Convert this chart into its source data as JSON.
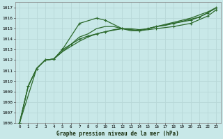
{
  "title": "Graphe pression niveau de la mer (hPa)",
  "bg_color": "#c8e8e8",
  "grid_color": "#b8d8d8",
  "line_color": "#2d6a2d",
  "xlim": [
    -0.5,
    23.5
  ],
  "ylim": [
    1006,
    1017.5
  ],
  "xticks": [
    0,
    1,
    2,
    3,
    4,
    5,
    6,
    7,
    8,
    9,
    10,
    11,
    12,
    13,
    14,
    15,
    16,
    17,
    18,
    19,
    20,
    21,
    22,
    23
  ],
  "yticks": [
    1006,
    1007,
    1008,
    1009,
    1010,
    1011,
    1012,
    1013,
    1014,
    1015,
    1016,
    1017
  ],
  "series": [
    {
      "x": [
        0,
        1,
        2,
        3,
        4,
        5,
        7,
        9,
        10,
        12,
        14,
        16,
        18,
        20,
        22,
        23
      ],
      "y": [
        1006,
        1009.5,
        1011.2,
        1012.0,
        1012.1,
        1013.0,
        1015.5,
        1016.0,
        1015.8,
        1015.0,
        1014.8,
        1015.0,
        1015.2,
        1015.5,
        1016.2,
        1016.8
      ]
    },
    {
      "x": [
        0,
        1,
        2,
        3,
        4,
        5,
        6,
        7,
        8,
        9,
        10,
        11,
        12,
        13,
        14,
        15,
        16,
        17,
        18,
        19,
        20,
        21,
        22,
        23
      ],
      "y": [
        1006,
        1009.5,
        1011.2,
        1012.0,
        1012.1,
        1012.8,
        1013.5,
        1014.2,
        1014.5,
        1015.0,
        1015.2,
        1015.2,
        1015.0,
        1014.8,
        1014.8,
        1015.0,
        1015.2,
        1015.3,
        1015.5,
        1015.7,
        1015.9,
        1016.1,
        1016.5,
        1017.0
      ]
    },
    {
      "x": [
        0,
        1,
        2,
        3,
        4,
        5,
        6,
        7,
        8,
        9,
        10,
        11,
        12,
        13,
        14,
        15,
        16,
        17,
        18,
        19,
        20,
        21,
        22,
        23
      ],
      "y": [
        1006,
        1009.5,
        1011.2,
        1012.0,
        1012.1,
        1012.8,
        1013.3,
        1013.8,
        1014.2,
        1014.5,
        1014.7,
        1014.9,
        1015.0,
        1015.0,
        1014.9,
        1015.0,
        1015.2,
        1015.4,
        1015.6,
        1015.8,
        1016.0,
        1016.3,
        1016.6,
        1017.0
      ]
    },
    {
      "x": [
        0,
        2,
        3,
        4,
        5,
        6,
        7,
        8,
        9,
        10,
        12,
        14,
        15,
        16,
        18,
        20,
        21,
        22,
        23
      ],
      "y": [
        1006,
        1011.2,
        1012.0,
        1012.1,
        1013.0,
        1013.5,
        1014.0,
        1014.3,
        1014.5,
        1014.7,
        1015.0,
        1014.8,
        1015.0,
        1015.2,
        1015.5,
        1015.8,
        1016.1,
        1016.5,
        1017.0
      ]
    }
  ],
  "marker_series": [
    {
      "x": [
        0,
        1,
        2,
        3,
        4,
        5,
        7,
        9,
        10,
        12,
        14,
        16,
        18,
        20,
        22,
        23
      ],
      "y": [
        1006,
        1009.5,
        1011.2,
        1012.0,
        1012.1,
        1013.0,
        1015.5,
        1016.0,
        1015.8,
        1015.0,
        1014.8,
        1015.0,
        1015.2,
        1015.5,
        1016.2,
        1016.8
      ]
    },
    {
      "x": [],
      "y": []
    },
    {
      "x": [],
      "y": []
    },
    {
      "x": [
        0,
        2,
        3,
        4,
        5,
        6,
        7,
        8,
        9,
        10,
        12,
        14,
        15,
        16,
        18,
        20,
        21,
        22,
        23
      ],
      "y": [
        1006,
        1011.2,
        1012.0,
        1012.1,
        1013.0,
        1013.5,
        1014.0,
        1014.3,
        1014.5,
        1014.7,
        1015.0,
        1014.8,
        1015.0,
        1015.2,
        1015.5,
        1015.8,
        1016.1,
        1016.5,
        1017.0
      ]
    }
  ]
}
